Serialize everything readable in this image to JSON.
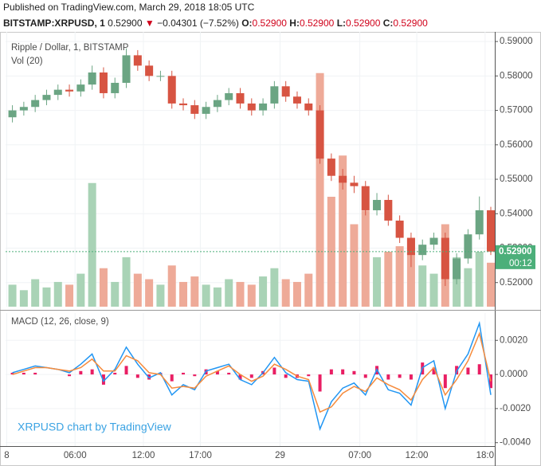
{
  "header": {
    "published": "Published on TradingView.com, March 29, 2018 18:05 UTC",
    "symbol": "BITSTAMP:XRPUSD, 1",
    "last": "0.52900",
    "arrow": "▼",
    "change": "−0.04301 (−7.52%)",
    "ohlc": [
      {
        "label": "O:",
        "value": "0.52900"
      },
      {
        "label": "H:",
        "value": "0.52900"
      },
      {
        "label": "L:",
        "value": "0.52900"
      },
      {
        "label": "C:",
        "value": "0.52900"
      }
    ]
  },
  "watermark": "XRPUSD chart by TradingView",
  "chart_data": [
    {
      "type": "candlestick",
      "title": "Ripple / Dollar, 1, BITSTAMP",
      "x": [
        0.5,
        1.5,
        2.5,
        3.5,
        4.5,
        5.5,
        6.5,
        7.5,
        8.5,
        9.5,
        10.5,
        11.5,
        12.5,
        13.5,
        14.5,
        15.5,
        16.5,
        17.5,
        18.5,
        19.5,
        20.5,
        21.5,
        22.5,
        23.5,
        24.5,
        25.5,
        26.5,
        27.5,
        28.5,
        29.5,
        30.5,
        31.5,
        32.5,
        33.5,
        34.5,
        35.5,
        36.5,
        37.5,
        38.5,
        39.5,
        40.5,
        41.5,
        42.5
      ],
      "open": [
        0.568,
        0.57,
        0.571,
        0.573,
        0.5745,
        0.576,
        0.5755,
        0.5775,
        0.581,
        0.575,
        0.578,
        0.586,
        0.583,
        0.58,
        0.58,
        0.572,
        0.5715,
        0.569,
        0.571,
        0.573,
        0.575,
        0.572,
        0.57,
        0.572,
        0.577,
        0.574,
        0.572,
        0.57,
        0.556,
        0.551,
        0.549,
        0.548,
        0.541,
        0.544,
        0.538,
        0.533,
        0.528,
        0.531,
        0.533,
        0.521,
        0.527,
        0.534,
        0.541
      ],
      "high": [
        0.5715,
        0.5725,
        0.5745,
        0.576,
        0.5775,
        0.5775,
        0.579,
        0.583,
        0.5825,
        0.5795,
        0.588,
        0.5875,
        0.5845,
        0.5815,
        0.5815,
        0.5735,
        0.573,
        0.5725,
        0.5745,
        0.5765,
        0.5765,
        0.5735,
        0.5735,
        0.5785,
        0.5785,
        0.5755,
        0.5735,
        0.5715,
        0.5575,
        0.553,
        0.551,
        0.5495,
        0.546,
        0.5455,
        0.5395,
        0.5345,
        0.5325,
        0.5345,
        0.5345,
        0.5285,
        0.5355,
        0.545,
        0.542
      ],
      "low": [
        0.5665,
        0.5685,
        0.5695,
        0.5715,
        0.573,
        0.574,
        0.574,
        0.576,
        0.5735,
        0.5735,
        0.5765,
        0.5815,
        0.5785,
        0.5785,
        0.5705,
        0.57,
        0.5675,
        0.5675,
        0.5695,
        0.5715,
        0.5705,
        0.5685,
        0.5685,
        0.5705,
        0.5725,
        0.5705,
        0.5685,
        0.5545,
        0.5495,
        0.547,
        0.546,
        0.5395,
        0.5395,
        0.5365,
        0.5315,
        0.5245,
        0.5265,
        0.5295,
        0.519,
        0.5195,
        0.5255,
        0.5325,
        0.528
      ],
      "close": [
        0.57,
        0.571,
        0.573,
        0.5745,
        0.576,
        0.5755,
        0.5775,
        0.581,
        0.575,
        0.578,
        0.586,
        0.583,
        0.58,
        0.58,
        0.572,
        0.5715,
        0.569,
        0.571,
        0.573,
        0.575,
        0.572,
        0.57,
        0.572,
        0.577,
        0.574,
        0.572,
        0.57,
        0.556,
        0.551,
        0.549,
        0.548,
        0.541,
        0.544,
        0.538,
        0.533,
        0.528,
        0.531,
        0.533,
        0.521,
        0.527,
        0.534,
        0.541,
        0.529
      ],
      "up_color": "#6ba583",
      "down_color": "#d75442",
      "volume": {
        "name": "Vol (20)",
        "values": [
          8,
          6,
          10,
          7,
          9,
          8,
          12,
          45,
          14,
          9,
          18,
          12,
          10,
          8,
          15,
          9,
          11,
          8,
          7,
          10,
          9,
          8,
          11,
          14,
          10,
          9,
          12,
          85,
          40,
          55,
          30,
          35,
          18,
          20,
          22,
          25,
          15,
          12,
          30,
          18,
          14,
          20,
          16
        ],
        "ylim": [
          0,
          100
        ],
        "up_color": "#a9d3b6",
        "down_color": "#eeaa98"
      },
      "xlim": [
        -0.1,
        42.85
      ],
      "xticks": [
        {
          "value": 0,
          "label": "8"
        },
        {
          "value": 6,
          "label": "06:00"
        },
        {
          "value": 12,
          "label": "12:00"
        },
        {
          "value": 17,
          "label": "17:00"
        },
        {
          "value": 24,
          "label": "29"
        },
        {
          "value": 31,
          "label": "07:00"
        },
        {
          "value": 36,
          "label": "12:00"
        },
        {
          "value": 42,
          "label": "18:0"
        }
      ],
      "ylim": [
        0.513,
        0.5928
      ],
      "yticks": [
        {
          "value": 0.52,
          "label": "0.52000"
        },
        {
          "value": 0.53,
          "label": "0.53000"
        },
        {
          "value": 0.54,
          "label": "0.54000"
        },
        {
          "value": 0.55,
          "label": "0.55000"
        },
        {
          "value": 0.56,
          "label": "0.56000"
        },
        {
          "value": 0.57,
          "label": "0.57000"
        },
        {
          "value": 0.58,
          "label": "0.58000"
        },
        {
          "value": 0.59,
          "label": "0.59000"
        }
      ],
      "last_price": {
        "value": 0.529,
        "label": "0.52900",
        "color": "#4caf7a"
      },
      "countdown": "00:12",
      "grid": true
    },
    {
      "type": "line",
      "title": "MACD (12, 26, close, 9)",
      "x": [
        0.5,
        1.5,
        2.5,
        3.5,
        4.5,
        5.5,
        6.5,
        7.5,
        8.5,
        9.5,
        10.5,
        11.5,
        12.5,
        13.5,
        14.5,
        15.5,
        16.5,
        17.5,
        18.5,
        19.5,
        20.5,
        21.5,
        22.5,
        23.5,
        24.5,
        25.5,
        26.5,
        27.5,
        28.5,
        29.5,
        30.5,
        31.5,
        32.5,
        33.5,
        34.5,
        35.5,
        36.5,
        37.5,
        38.5,
        39.5,
        40.5,
        41.5,
        42.5
      ],
      "series": [
        {
          "style": "histogram",
          "color": "#e91e63",
          "values": [
            0.0001,
            0.0001,
            0.0001,
            0,
            0,
            -0.0001,
            0.0002,
            0.0003,
            -0.0006,
            0.0001,
            0.0005,
            -0.0002,
            -0.0003,
            0.0001,
            -0.0004,
            0.0001,
            -0.0001,
            0.0003,
            0.0002,
            0.0001,
            -0.0003,
            -0.0002,
            0.0002,
            0.0004,
            -0.0002,
            -0.0002,
            -0.0001,
            -0.001,
            0.0003,
            0.0003,
            0.0002,
            -0.0002,
            0.0005,
            -0.0003,
            -0.0002,
            -0.0003,
            0.0007,
            0.0004,
            -0.0008,
            0.0005,
            0.0004,
            0.0006,
            -0.0008
          ]
        },
        {
          "style": "line",
          "color": "#2196f3",
          "values": [
            0.0001,
            0.0003,
            0.0005,
            0.0004,
            0.0003,
            0.0001,
            0.0006,
            0.0012,
            -0.0004,
            0.0003,
            0.0016,
            0.0006,
            -0.0002,
            0.0001,
            -0.0012,
            -0.0006,
            -0.0009,
            0.0002,
            0.0004,
            0.0006,
            -0.0003,
            -0.0006,
            0.0001,
            0.001,
            0.0001,
            -0.0003,
            -0.0004,
            -0.0032,
            -0.0016,
            -0.0008,
            -0.0005,
            -0.0012,
            0.0003,
            -0.0009,
            -0.0011,
            -0.0018,
            0.0004,
            0.0008,
            -0.002,
            0.0002,
            0.0012,
            0.003,
            -0.0012
          ]
        },
        {
          "style": "line",
          "color": "#f68b3c",
          "values": [
            0,
            0.0002,
            0.0004,
            0.0004,
            0.0003,
            0.0002,
            0.0004,
            0.0009,
            0.0002,
            0.0002,
            0.0011,
            0.0008,
            0.0001,
            0,
            -0.0008,
            -0.0007,
            -0.0008,
            -0.0001,
            0.0002,
            0.0005,
            0,
            -0.0004,
            -0.0001,
            0.0006,
            0.0003,
            -0.0001,
            -0.0003,
            -0.0022,
            -0.0019,
            -0.0011,
            -0.0007,
            -0.001,
            -0.0002,
            -0.0006,
            -0.0009,
            -0.0015,
            -0.0003,
            0.0004,
            -0.0012,
            -0.0003,
            0.0008,
            0.0024,
            -0.0004
          ]
        }
      ],
      "xlim": [
        -0.1,
        42.85
      ],
      "ylim": [
        -0.0042,
        0.0036
      ],
      "yticks": [
        {
          "value": 0.002,
          "label": "0.0020"
        },
        {
          "value": 0,
          "label": "0.0000"
        },
        {
          "value": -0.002,
          "label": "-0.0020"
        },
        {
          "value": -0.004,
          "label": "-0.0040"
        }
      ],
      "grid": true
    }
  ]
}
